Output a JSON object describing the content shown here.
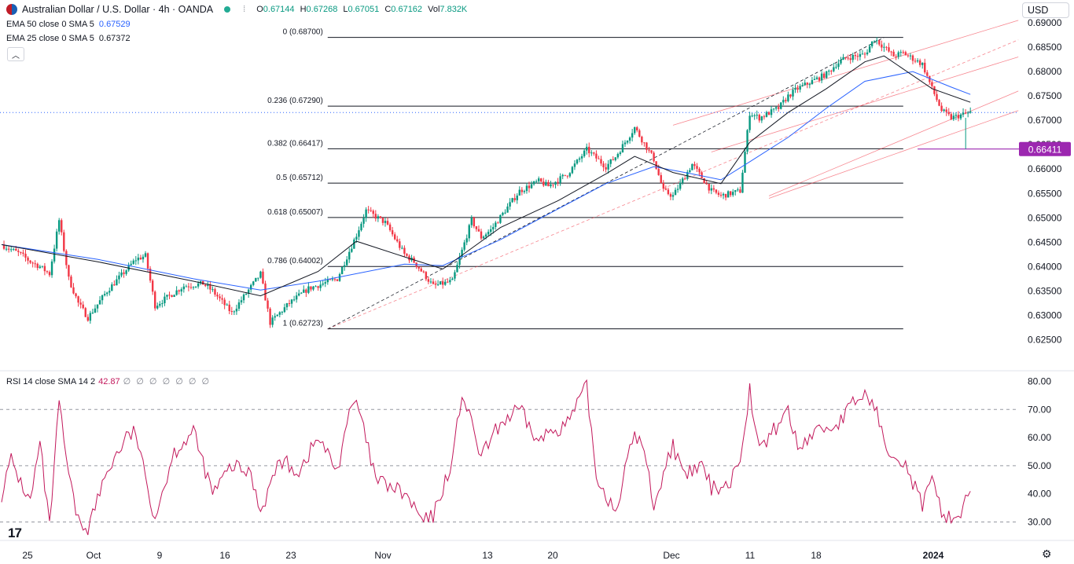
{
  "header": {
    "symbol": "Australian Dollar / U.S. Dollar · 4h · OANDA",
    "open_label": "O",
    "open": "0.67144",
    "high_label": "H",
    "high": "0.67268",
    "low_label": "L",
    "low": "0.67051",
    "close_label": "C",
    "close": "0.67162",
    "vol_label": "Vol",
    "vol": "7.832K",
    "currency_button": "USD",
    "colors": {
      "up": "#089981",
      "down": "#f23645"
    }
  },
  "indicators": [
    {
      "label": "EMA 50 close 0 SMA 5",
      "value": "0.67529",
      "color": "#2962ff"
    },
    {
      "label": "EMA 25 close 0 SMA 5",
      "value": "0.67372",
      "color": "#131722"
    }
  ],
  "collapse_icon": "chevron-up-icon",
  "rsi_panel": {
    "label": "RSI 14 close SMA 14 2",
    "value": "42.87",
    "na": "∅ ∅ ∅ ∅ ∅ ∅ ∅"
  },
  "chart_data": [
    {
      "type": "candlestick",
      "title": "Australian Dollar / U.S. Dollar · 4h · OANDA",
      "y_axis": {
        "min": 0.6225,
        "max": 0.69,
        "ticks": [
          "0.69000",
          "0.68500",
          "0.68000",
          "0.67500",
          "0.67000",
          "0.66500",
          "0.66000",
          "0.65500",
          "0.65000",
          "0.64500",
          "0.64000",
          "0.63500",
          "0.63000",
          "0.62500"
        ]
      },
      "x_ticks": [
        "25",
        "Oct",
        "9",
        "16",
        "23",
        "Nov",
        "13",
        "20",
        "Dec",
        "11",
        "18",
        "2024"
      ],
      "price_path": {
        "days": [
          0,
          1,
          2,
          3,
          4,
          5,
          6,
          7,
          8,
          9,
          11,
          14,
          15,
          16,
          19,
          21,
          22,
          24,
          27,
          28,
          30,
          32,
          35,
          37,
          38,
          40,
          42,
          43,
          44,
          45,
          47,
          49,
          50,
          51,
          54,
          56,
          57,
          59,
          61,
          63,
          64,
          66,
          68,
          69,
          70,
          72,
          74,
          75,
          77,
          78,
          79,
          80,
          81,
          82,
          83,
          86,
          87,
          88,
          90,
          91,
          93,
          94,
          96,
          97,
          98,
          99,
          101
        ],
        "closes": [
          0.6445,
          0.6435,
          0.6425,
          0.641,
          0.64,
          0.6385,
          0.6495,
          0.6375,
          0.6325,
          0.6295,
          0.635,
          0.6415,
          0.6422,
          0.632,
          0.636,
          0.6365,
          0.635,
          0.6305,
          0.6385,
          0.6285,
          0.6325,
          0.6355,
          0.6375,
          0.6465,
          0.6515,
          0.649,
          0.6425,
          0.641,
          0.6385,
          0.636,
          0.637,
          0.6495,
          0.646,
          0.6475,
          0.6555,
          0.6575,
          0.6565,
          0.659,
          0.664,
          0.6605,
          0.6625,
          0.6685,
          0.662,
          0.6555,
          0.6545,
          0.661,
          0.6555,
          0.6545,
          0.6555,
          0.6715,
          0.6705,
          0.6715,
          0.6725,
          0.675,
          0.6765,
          0.6795,
          0.6815,
          0.6828,
          0.6835,
          0.6868,
          0.6832,
          0.6838,
          0.6815,
          0.6765,
          0.672,
          0.6705,
          0.6716
        ]
      },
      "ema_50": {
        "days": [
          0,
          10,
          20,
          27,
          33,
          42,
          46,
          52,
          58,
          63,
          68,
          72,
          75,
          78,
          82,
          86,
          90,
          95,
          99,
          101
        ],
        "values": [
          0.6445,
          0.6415,
          0.6375,
          0.6352,
          0.637,
          0.6405,
          0.6402,
          0.6455,
          0.6518,
          0.657,
          0.6605,
          0.659,
          0.6578,
          0.6615,
          0.6665,
          0.6725,
          0.678,
          0.68,
          0.6768,
          0.6753
        ]
      },
      "ema_25": {
        "days": [
          0,
          10,
          20,
          27,
          33,
          37,
          42,
          46,
          52,
          58,
          63,
          66,
          70,
          75,
          78,
          82,
          86,
          90,
          92,
          97,
          101
        ],
        "values": [
          0.6445,
          0.641,
          0.637,
          0.634,
          0.639,
          0.6452,
          0.642,
          0.6395,
          0.648,
          0.6535,
          0.659,
          0.6626,
          0.6593,
          0.657,
          0.6655,
          0.6716,
          0.6765,
          0.682,
          0.6832,
          0.6765,
          0.6737
        ]
      },
      "fibonacci": [
        {
          "level": "0",
          "price": 0.687,
          "label": "0 (0.68700)"
        },
        {
          "level": "0.236",
          "price": 0.6729,
          "label": "0.236 (0.67290)"
        },
        {
          "level": "0.382",
          "price": 0.66417,
          "label": "0.382 (0.66417)"
        },
        {
          "level": "0.5",
          "price": 0.65712,
          "label": "0.5 (0.65712)"
        },
        {
          "level": "0.618",
          "price": 0.65007,
          "label": "0.618 (0.65007)"
        },
        {
          "level": "0.786",
          "price": 0.64002,
          "label": "0.786 (0.64002)"
        },
        {
          "level": "1",
          "price": 0.62723,
          "label": "1 (0.62723)"
        }
      ],
      "horizontal_line": {
        "price": 0.66411,
        "label": "0.66411",
        "color": "#9c27b0"
      },
      "last_price_line": 0.6716
    },
    {
      "type": "line",
      "title": "RSI 14 close SMA 14 2",
      "y_axis": {
        "min": 27,
        "max": 82,
        "ticks": [
          "80.00",
          "70.00",
          "60.00",
          "50.00",
          "40.00",
          "30.00"
        ]
      },
      "bands": [
        70,
        50,
        30
      ],
      "series": [
        {
          "days": [
            0,
            1,
            2,
            3,
            4,
            5,
            6,
            7,
            8,
            9,
            11,
            13,
            14,
            15,
            16,
            18,
            20,
            22,
            24,
            26,
            27,
            29,
            31,
            33,
            35,
            36,
            37,
            39,
            42,
            44,
            45,
            47,
            48,
            50,
            52,
            54,
            56,
            57,
            59,
            61,
            62,
            64,
            66,
            67,
            68,
            70,
            71,
            73,
            74,
            76,
            77,
            78,
            79,
            81,
            82,
            83,
            85,
            87,
            89,
            90,
            91,
            92,
            94,
            96,
            97,
            98,
            99,
            100,
            101
          ],
          "values": [
            40,
            52,
            44,
            37,
            58,
            28,
            72,
            46,
            30,
            28,
            48,
            60,
            62,
            45,
            32,
            55,
            62,
            40,
            50,
            47,
            34,
            52,
            48,
            60,
            48,
            66,
            73,
            45,
            40,
            30,
            32,
            52,
            76,
            53,
            65,
            70,
            58,
            62,
            65,
            78,
            46,
            34,
            62,
            55,
            36,
            58,
            46,
            50,
            42,
            44,
            54,
            77,
            55,
            65,
            70,
            56,
            63,
            64,
            73,
            75,
            72,
            58,
            52,
            36,
            44,
            34,
            31,
            33,
            43
          ]
        }
      ]
    }
  ]
}
